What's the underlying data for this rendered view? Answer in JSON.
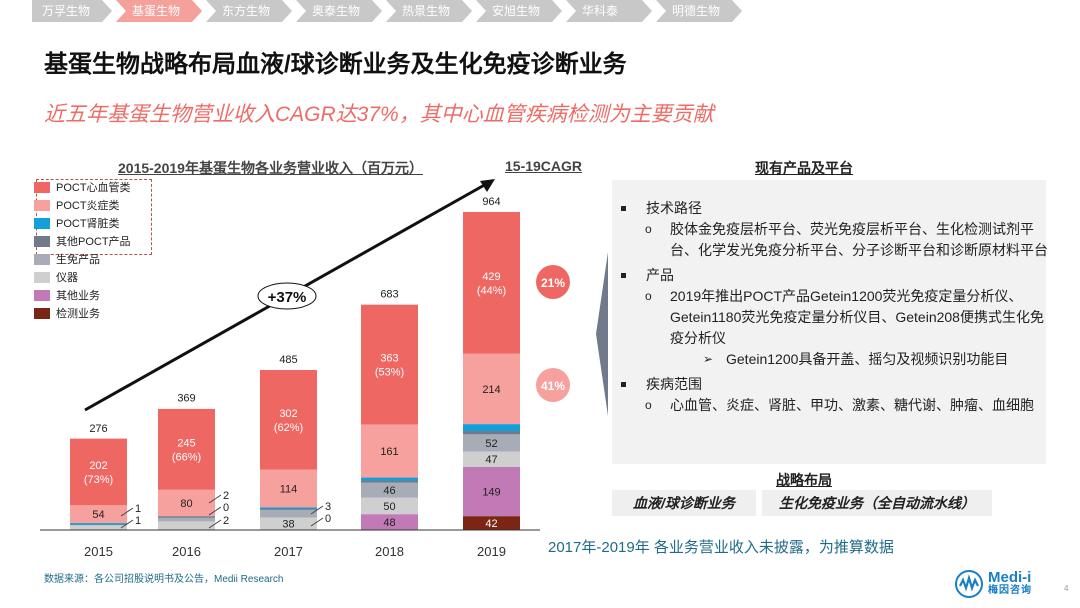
{
  "breadcrumb": [
    {
      "label": "万孚生物",
      "active": false
    },
    {
      "label": "基蛋生物",
      "active": true
    },
    {
      "label": "东方生物",
      "active": false
    },
    {
      "label": "奥泰生物",
      "active": false
    },
    {
      "label": "热景生物",
      "active": false
    },
    {
      "label": "安旭生物",
      "active": false
    },
    {
      "label": "华科泰",
      "active": false
    },
    {
      "label": "明德生物",
      "active": false
    }
  ],
  "title": "基蛋生物战略布局血液/球诊断业务及生化免疫诊断业务",
  "subtitle": "近五年基蛋生物营业收入CAGR达37%，其中心血管疾病检测为主要贡献",
  "chart_data": {
    "type": "bar",
    "stacked": true,
    "title": "2015-2019年基蛋生物各业务营业收入（百万元）",
    "xlabel": "",
    "ylabel": "",
    "categories": [
      "2015",
      "2016",
      "2017",
      "2018",
      "2019"
    ],
    "totals": [
      276,
      369,
      485,
      683,
      964
    ],
    "series": [
      {
        "name": "检测业务",
        "color": "#7b2514",
        "values": [
          0,
          0,
          0,
          0,
          42
        ],
        "labels": [
          "",
          "",
          "",
          "0",
          "42"
        ]
      },
      {
        "name": "其他业务",
        "color": "#c27ab6",
        "values": [
          0,
          0,
          0,
          48,
          149
        ],
        "labels": [
          "",
          "",
          "0",
          "48",
          "149"
        ]
      },
      {
        "name": "仪器",
        "color": "#cfcfcf",
        "values": [
          15,
          26,
          38,
          50,
          47
        ],
        "labels": [
          "15",
          "26",
          "38",
          "50",
          "47"
        ]
      },
      {
        "name": "生免产品",
        "color": "#a8acb6",
        "values": [
          4,
          14,
          27,
          46,
          52
        ],
        "labels": [
          "4",
          "14",
          "27",
          "46",
          "52"
        ]
      },
      {
        "name": "其他POCT产品",
        "color": "#717a8c",
        "values": [
          1,
          2,
          1,
          6,
          10
        ],
        "labels": [
          "1",
          "2",
          "1",
          "6",
          "10"
        ]
      },
      {
        "name": "POCT肾脏类",
        "color": "#11a0da",
        "values": [
          1,
          0,
          3,
          9,
          21
        ],
        "labels": [
          "1",
          "0",
          "3",
          "9",
          "21"
        ]
      },
      {
        "name": "POCT炎症类",
        "color": "#f6a19e",
        "values": [
          54,
          80,
          114,
          161,
          214
        ],
        "labels": [
          "54",
          "80",
          "114",
          "161",
          "214"
        ]
      },
      {
        "name": "POCT心血管类",
        "color": "#ef6762",
        "values": [
          202,
          245,
          302,
          363,
          429
        ],
        "labels": [
          "202\n(73%)",
          "245\n(66%)",
          "302\n(62%)",
          "363\n(53%)",
          "429\n(44%)"
        ]
      }
    ],
    "extra_labels_2016": [
      "2",
      "0",
      "2"
    ],
    "extra_label_2017_instrument": "0",
    "ylim": [
      0,
      1000
    ],
    "grid": false,
    "legend": "top-left",
    "annotation": "+37%",
    "cagr_title": "15-19CAGR",
    "cagr": [
      {
        "series": "POCT心血管类",
        "value": "21%",
        "color": "#ef6762"
      },
      {
        "series": "POCT炎症类",
        "value": "41%",
        "color": "#f6a19e"
      }
    ]
  },
  "legend": [
    {
      "label": "POCT心血管类",
      "color": "#ef6762"
    },
    {
      "label": "POCT炎症类",
      "color": "#f6a19e"
    },
    {
      "label": "POCT肾脏类",
      "color": "#11a0da"
    },
    {
      "label": "其他POCT产品",
      "color": "#717a8c"
    },
    {
      "label": "生免产品",
      "color": "#a8acb6"
    },
    {
      "label": "仪器",
      "color": "#cfcfcf"
    },
    {
      "label": "其他业务",
      "color": "#c27ab6"
    },
    {
      "label": "检测业务",
      "color": "#7b2514"
    }
  ],
  "right": {
    "title": "现有产品及平台",
    "items": [
      {
        "level": 1,
        "text": "技术路径"
      },
      {
        "level": 2,
        "text": "胶体金免疫层析平台、荧光免疫层析平台、生化检测试剂平台、化学发光免疫分析平台、分子诊断平台和诊断原材料平台"
      },
      {
        "level": 1,
        "text": "产品"
      },
      {
        "level": 2,
        "text": "2019年推出POCT产品Getein1200荧光免疫定量分析仪、 Getein1180荧光免疫定量分析仪目、Getein208便携式生化免疫分析仪"
      },
      {
        "level": 3,
        "text": "Getein1200具备开盖、摇匀及视频识别功能目"
      },
      {
        "level": 1,
        "text": "疾病范围"
      },
      {
        "level": 2,
        "text": "心血管、炎症、肾脏、甲功、激素、糖代谢、肿瘤、血细胞"
      }
    ],
    "strategy_title": "战略布局",
    "strategy_tags": [
      "血液/球诊断业务",
      "生化免疫业务（全自动流水线）"
    ]
  },
  "note": "2017年-2019年 各业务营业收入未披露，为推算数据",
  "source": "数据来源：各公司招股说明书及公告，Medii Research",
  "logo": {
    "en": "Medi-i",
    "cn": "梅因咨询"
  },
  "page_number": "4"
}
